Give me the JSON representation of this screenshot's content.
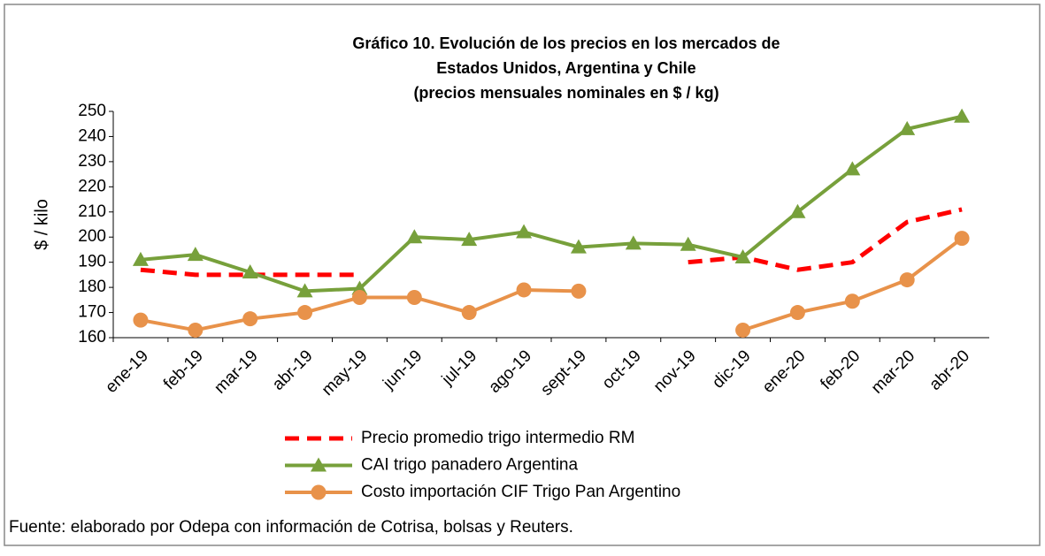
{
  "chart_data": {
    "type": "line",
    "title": [
      "Gráfico 10. Evolución de los precios en los mercados de",
      "Estados Unidos, Argentina y Chile",
      "(precios mensuales nominales en $ / kg)"
    ],
    "y_label": "$ / kilo",
    "categories": [
      "ene-19",
      "feb-19",
      "mar-19",
      "abr-19",
      "may-19",
      "jun-19",
      "jul-19",
      "ago-19",
      "sept-19",
      "oct-19",
      "nov-19",
      "dic-19",
      "ene-20",
      "feb-20",
      "mar-20",
      "abr-20"
    ],
    "series": [
      {
        "name": "Precio promedio trigo intermedio RM",
        "color": "#ff0000",
        "style": "dashed",
        "marker": "none",
        "values": [
          187,
          185,
          185,
          185,
          185,
          null,
          null,
          null,
          null,
          null,
          190,
          192,
          187,
          190,
          206,
          211
        ]
      },
      {
        "name": "CAI trigo panadero Argentina",
        "color": "#77a03b",
        "style": "solid",
        "marker": "triangle",
        "values": [
          191,
          193,
          186,
          178.5,
          179.5,
          200,
          199,
          202,
          196,
          197.5,
          197,
          192,
          210,
          227,
          243,
          248
        ]
      },
      {
        "name": "Costo importación CIF Trigo Pan Argentino",
        "color": "#e8924a",
        "style": "solid",
        "marker": "circle",
        "values": [
          167,
          163,
          167.5,
          170,
          176,
          176,
          170,
          179,
          178.5,
          null,
          null,
          163,
          170,
          174.5,
          183,
          199.5
        ]
      }
    ],
    "ylim": [
      160,
      250
    ],
    "yticks": [
      160,
      170,
      180,
      190,
      200,
      210,
      220,
      230,
      240,
      250
    ],
    "legend": "bottom",
    "source": "Fuente: elaborado por Odepa con información de Cotrisa, bolsas y Reuters."
  }
}
